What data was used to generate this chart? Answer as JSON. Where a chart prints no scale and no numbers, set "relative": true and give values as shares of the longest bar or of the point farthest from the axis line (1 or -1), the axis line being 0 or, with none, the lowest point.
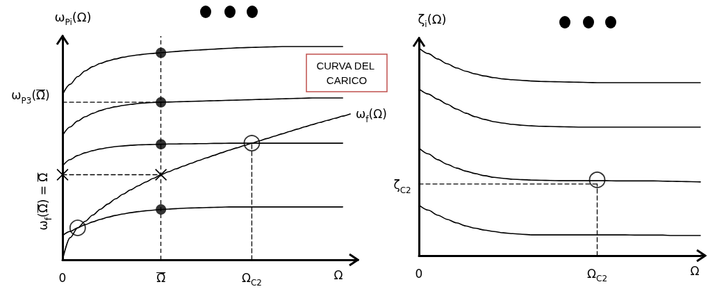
{
  "chart_data": [
    {
      "type": "line",
      "relative": true,
      "xlabel": "Ω",
      "ylabel": "ω$_{Pi}$(Ω)",
      "categories": [
        "0",
        null,
        null,
        null,
        null,
        null,
        null,
        null,
        null,
        null,
        null,
        null,
        null,
        "Ω̄",
        null,
        null,
        null,
        null,
        null,
        null,
        null,
        null,
        null,
        null,
        null,
        "Ω$_{C2}$",
        null,
        null,
        null,
        null,
        null,
        null,
        null,
        null,
        null,
        null,
        null,
        null,
        null,
        null
      ],
      "series": [
        {
          "color": "#000000",
          "values": [
            0.775,
            0.823,
            0.859,
            0.886,
            0.906,
            0.921,
            0.933,
            0.942,
            0.95,
            0.956,
            0.961,
            0.965,
            0.968,
            0.971,
            0.974,
            0.977,
            0.98,
            0.982,
            0.984,
            0.986,
            0.988,
            0.99,
            0.992,
            0.994,
            0.995,
            0.996,
            0.997,
            0.998,
            0.999,
            1,
            1,
            1,
            1,
            1,
            1,
            1,
            1,
            1,
            null,
            null
          ]
        },
        {
          "color": "#000000",
          "values": [
            0.583,
            0.623,
            0.651,
            0.671,
            0.687,
            0.7,
            0.71,
            0.718,
            0.724,
            0.729,
            0.733,
            0.736,
            0.738,
            0.739,
            0.74,
            0.741,
            0.742,
            0.743,
            0.744,
            0.745,
            0.746,
            0.747,
            0.748,
            0.749,
            0.75,
            0.751,
            0.752,
            0.753,
            0.754,
            0.755,
            0.756,
            0.757,
            0.758,
            0.759,
            0.759,
            0.759,
            0.759,
            0.759,
            null,
            null
          ]
        },
        {
          "color": "#000000",
          "values": [
            0.44,
            0.47,
            0.489,
            0.502,
            0.512,
            0.52,
            0.526,
            0.531,
            0.534,
            0.537,
            0.539,
            0.54,
            0.541,
            0.542,
            0.543,
            0.543,
            0.544,
            0.544,
            0.545,
            0.545,
            0.546,
            0.546,
            0.547,
            0.547,
            0.547,
            0.547,
            0.547,
            0.547,
            0.547,
            0.547,
            0.547,
            0.547,
            0.547,
            0.547,
            0.547,
            0.547,
            0.547,
            0.547,
            null,
            null
          ]
        },
        {
          "color": "#000000",
          "values": [
            0.114,
            0.133,
            0.15,
            0.165,
            0.178,
            0.19,
            0.2,
            0.208,
            0.215,
            0.221,
            0.226,
            0.23,
            0.233,
            0.236,
            0.238,
            0.24,
            0.242,
            0.243,
            0.244,
            0.245,
            0.246,
            0.247,
            0.248,
            0.248,
            0.248,
            0.248,
            0.248,
            0.248,
            0.248,
            0.248,
            0.248,
            0.248,
            0.248,
            0.248,
            0.248,
            0.248,
            0.248,
            0.248,
            null,
            null
          ]
        },
        {
          "name": "ω$_{f}$(Ω)",
          "color": "#000000",
          "values": [
            0,
            0.104,
            0.15,
            0.181,
            0.21,
            0.237,
            0.262,
            0.286,
            0.308,
            0.328,
            0.347,
            0.365,
            0.382,
            0.399,
            0.413,
            0.427,
            0.44,
            0.453,
            0.466,
            0.478,
            0.49,
            0.502,
            0.514,
            0.525,
            0.536,
            0.547,
            0.558,
            0.569,
            0.58,
            0.591,
            0.602,
            0.613,
            0.624,
            0.634,
            0.644,
            0.654,
            0.664,
            0.674,
            0.684,
            null
          ]
        },
        {
          "type": "line",
          "line_style": "dashed",
          "color": "#000000",
          "x": [
            "0",
            "Ω̄"
          ],
          "values": [
            0.739,
            0.739
          ]
        },
        {
          "type": "line",
          "line_style": "dashed",
          "marker": "cross",
          "color": "#000000",
          "x": [
            "0",
            "Ω̄"
          ],
          "values": [
            0.399,
            0.399
          ]
        },
        {
          "type": "line",
          "line_style": "dashed",
          "color": "#000000",
          "x": [
            "Ω$_{C2}$",
            "Ω$_{C2}$"
          ],
          "values": [
            0,
            0.547
          ]
        },
        {
          "type": "scatter",
          "marker": "circle",
          "color": "#000000",
          "x": [
            "Ω̄",
            "Ω̄",
            "Ω̄",
            "Ω̄"
          ],
          "values": [
            0.971,
            0.739,
            0.542,
            0.236
          ]
        },
        {
          "type": "scatter",
          "marker": "circle",
          "values": [
            null,
            null,
            0.15,
            null,
            null,
            null,
            null,
            null,
            null,
            null,
            null,
            null,
            null,
            null,
            null,
            null,
            null,
            null,
            null,
            null,
            null,
            null,
            null,
            null,
            null,
            0.547,
            null,
            null,
            null,
            null,
            null,
            null,
            null,
            null,
            null,
            null,
            null,
            null,
            null,
            null
          ]
        }
      ],
      "ref_lines": [
        {
          "axis": "x",
          "value": "Ω̄",
          "line_style": "dashed",
          "color": "#000000"
        }
      ],
      "annotations": [
        "CURVA DEL CARICO",
        "ω$_{P3}$(Ω̄)",
        "ω$_{f}$(Ω̄) = Ω̄"
      ]
    },
    {
      "type": "line",
      "relative": true,
      "xlabel": "Ω",
      "ylabel": "ζ$_{i}$(Ω)",
      "categories": [
        "0",
        null,
        null,
        null,
        null,
        null,
        null,
        null,
        null,
        null,
        null,
        null,
        null,
        null,
        null,
        null,
        null,
        null,
        null,
        "Ω$_{C2}$",
        null,
        null,
        null,
        null,
        null,
        null,
        null,
        null,
        null,
        null,
        null
      ],
      "series": [
        {
          "color": "#000000",
          "values": [
            1,
            0.973,
            0.947,
            0.924,
            0.904,
            0.888,
            0.875,
            0.865,
            0.857,
            0.851,
            0.847,
            0.844,
            0.841,
            0.839,
            0.838,
            0.837,
            0.836,
            0.835,
            0.834,
            0.833,
            0.833,
            0.833,
            0.833,
            0.833,
            0.833,
            0.833,
            0.833,
            0.833,
            0.833,
            0.833,
            0.833
          ]
        },
        {
          "color": "#000000",
          "values": [
            0.803,
            0.778,
            0.753,
            0.729,
            0.706,
            0.686,
            0.669,
            0.656,
            0.645,
            0.638,
            0.632,
            0.628,
            0.625,
            0.623,
            0.622,
            0.621,
            0.62,
            0.619,
            0.619,
            0.619,
            0.619,
            0.619,
            0.619,
            0.619,
            0.619,
            0.619,
            0.619,
            0.619,
            0.619,
            0.619,
            0.619
          ]
        },
        {
          "color": "#000000",
          "values": [
            0.518,
            0.49,
            0.462,
            0.44,
            0.422,
            0.407,
            0.395,
            0.385,
            0.377,
            0.372,
            0.368,
            0.366,
            0.364,
            0.363,
            0.362,
            0.361,
            0.361,
            0.361,
            0.361,
            0.361,
            0.361,
            0.36,
            0.36,
            0.36,
            0.36,
            0.36,
            0.359,
            0.358,
            0.357,
            0.356,
            0.355
          ]
        },
        {
          "color": "#000000",
          "values": [
            0.244,
            0.219,
            0.195,
            0.175,
            0.158,
            0.143,
            0.132,
            0.123,
            0.116,
            0.11,
            0.106,
            0.103,
            0.1,
            0.1,
            0.1,
            0.1,
            0.1,
            0.1,
            0.1,
            0.1,
            0.1,
            0.1,
            0.1,
            0.099,
            0.099,
            0.099,
            0.099,
            0.097,
            0.097,
            0.097,
            0.097
          ]
        },
        {
          "type": "line",
          "line_style": "dashed",
          "color": "#000000",
          "x": [
            "0",
            "Ω$_{C2}$"
          ],
          "values": [
            0.345,
            0.345
          ]
        },
        {
          "type": "line",
          "line_style": "dashed",
          "color": "#000000",
          "x": [
            "Ω$_{C2}$",
            "Ω$_{C2}$"
          ],
          "values": [
            0,
            0.345
          ]
        },
        {
          "type": "scatter",
          "marker": "circle",
          "values": [
            null,
            null,
            null,
            null,
            null,
            null,
            null,
            null,
            null,
            null,
            null,
            null,
            null,
            null,
            null,
            null,
            null,
            null,
            null,
            0.365,
            null,
            null,
            null,
            null,
            null,
            null,
            null,
            null,
            null,
            null,
            null
          ]
        }
      ],
      "annotations": [
        "ζ$_{C2}$"
      ]
    }
  ]
}
